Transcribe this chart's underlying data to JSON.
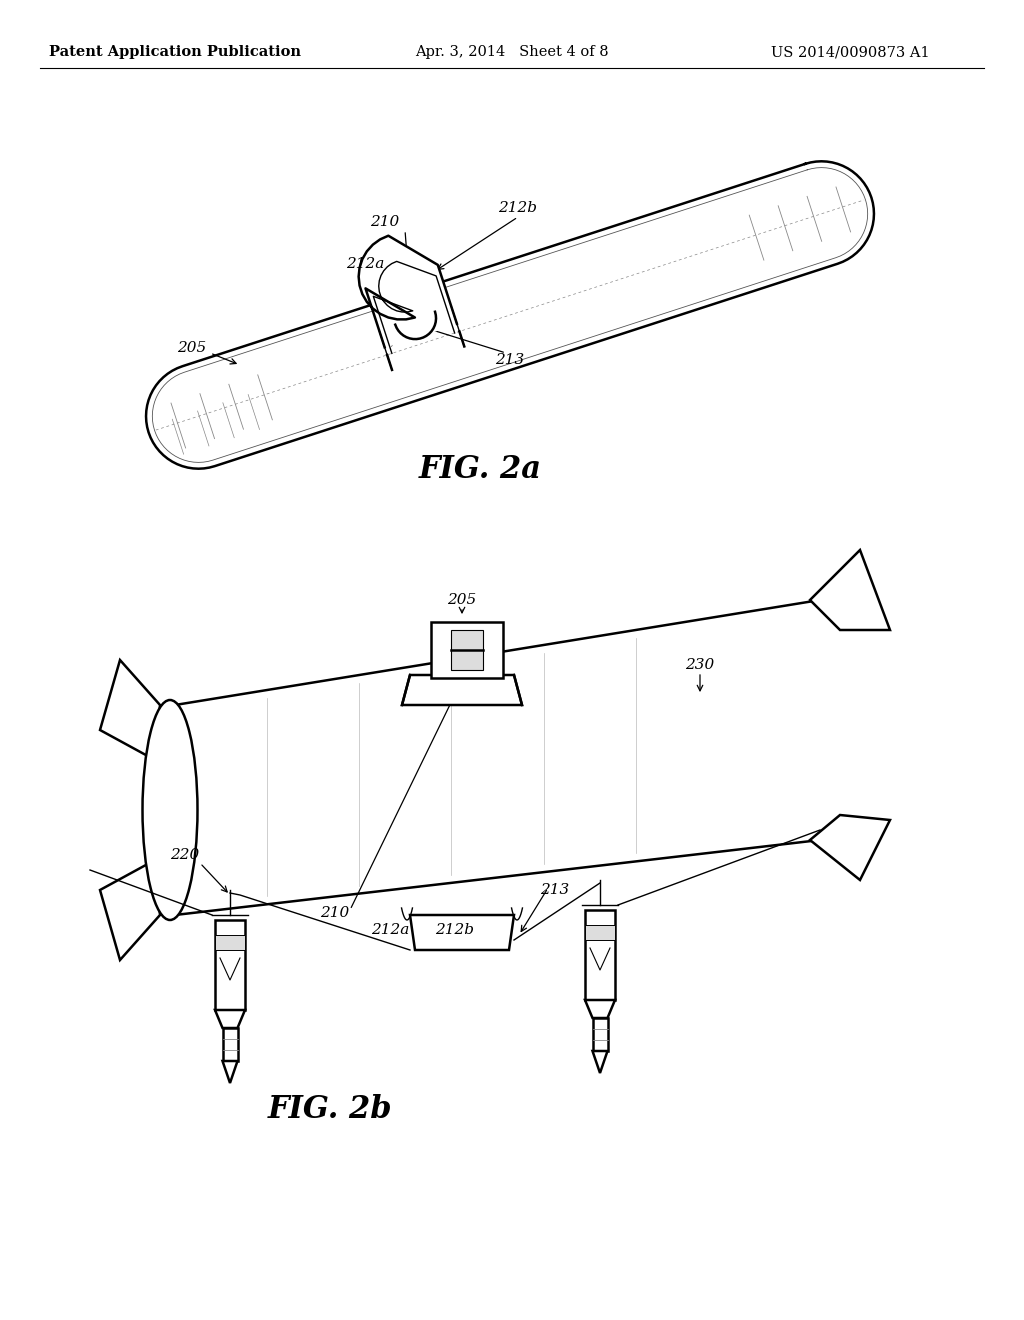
{
  "title_left": "Patent Application Publication",
  "title_center": "Apr. 3, 2014   Sheet 4 of 8",
  "title_right": "US 2014/0090873 A1",
  "fig2a_label": "FIG. 2a",
  "fig2b_label": "FIG. 2b",
  "background_color": "#ffffff",
  "line_color": "#000000",
  "gray_color": "#888888",
  "light_gray": "#cccccc",
  "header_font_size": 10.5,
  "label_font_size": 11,
  "fig_label_font_size": 22
}
